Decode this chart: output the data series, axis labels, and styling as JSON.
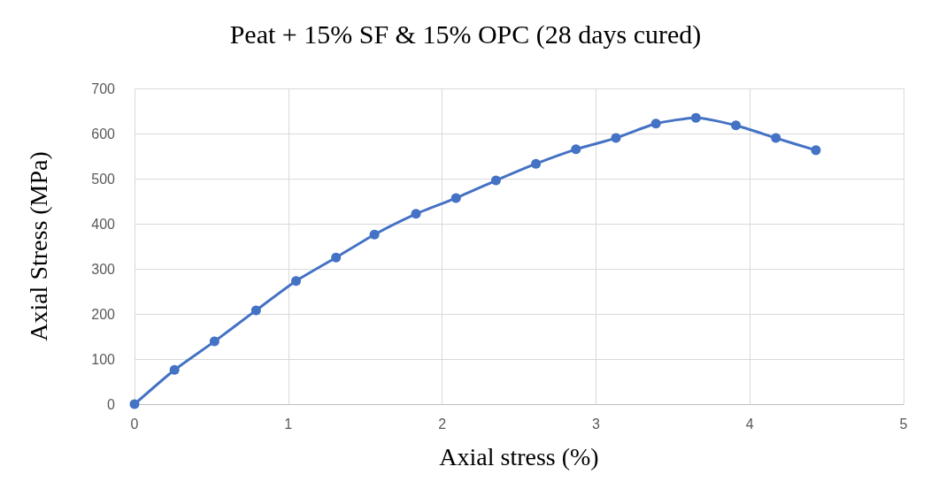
{
  "chart_data": {
    "type": "line",
    "title": "Peat + 15% SF & 15% OPC (28 days cured)",
    "xlabel": "Axial stress (%)",
    "ylabel": "Axial Stress (MPa)",
    "x": [
      0,
      0.26,
      0.52,
      0.79,
      1.05,
      1.31,
      1.56,
      1.83,
      2.09,
      2.35,
      2.61,
      2.87,
      3.13,
      3.39,
      3.65,
      3.91,
      4.17,
      4.43
    ],
    "series": [
      {
        "color": "#4472c4",
        "values": [
          0,
          76,
          139,
          208,
          273,
          325,
          376,
          422,
          457,
          496,
          533,
          565,
          590,
          622,
          635,
          618,
          590,
          563
        ]
      }
    ],
    "xlim": [
      0,
      5
    ],
    "xticks": [
      0,
      1,
      2,
      3,
      4,
      5
    ],
    "ylim": [
      0,
      700
    ],
    "yticks": [
      0,
      100,
      200,
      300,
      400,
      500,
      600,
      700
    ],
    "grid": true,
    "marker": "circle",
    "line_style": "solid"
  }
}
